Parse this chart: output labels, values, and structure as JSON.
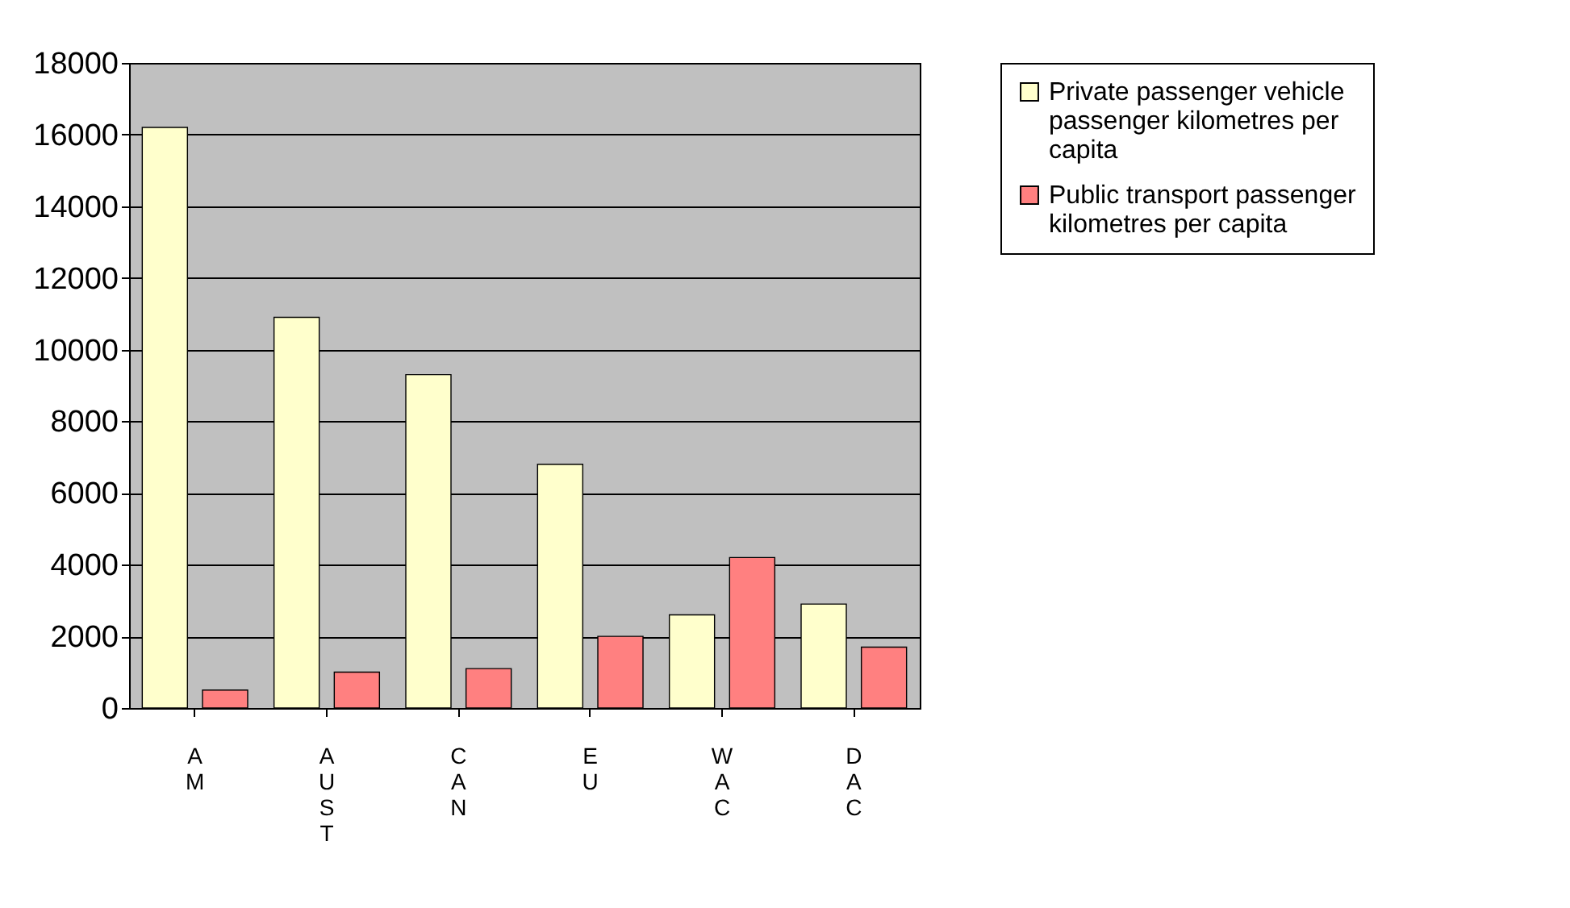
{
  "chart_data": {
    "type": "bar",
    "categories": [
      "AM",
      "AUST",
      "CAN",
      "EU",
      "WAC",
      "DAC"
    ],
    "series": [
      {
        "name": "Private passenger vehicle passenger kilometres per capita",
        "color": "#ffffcc",
        "values": [
          16200,
          10900,
          9300,
          6800,
          2600,
          2900
        ]
      },
      {
        "name": "Public transport passenger kilometres per capita",
        "color": "#ff8080",
        "values": [
          500,
          1000,
          1100,
          2000,
          4200,
          1700
        ]
      }
    ],
    "ylim": [
      0,
      18000
    ],
    "yticks": [
      0,
      2000,
      4000,
      6000,
      8000,
      10000,
      12000,
      14000,
      16000,
      18000
    ],
    "grid": "y",
    "legend": "right"
  }
}
